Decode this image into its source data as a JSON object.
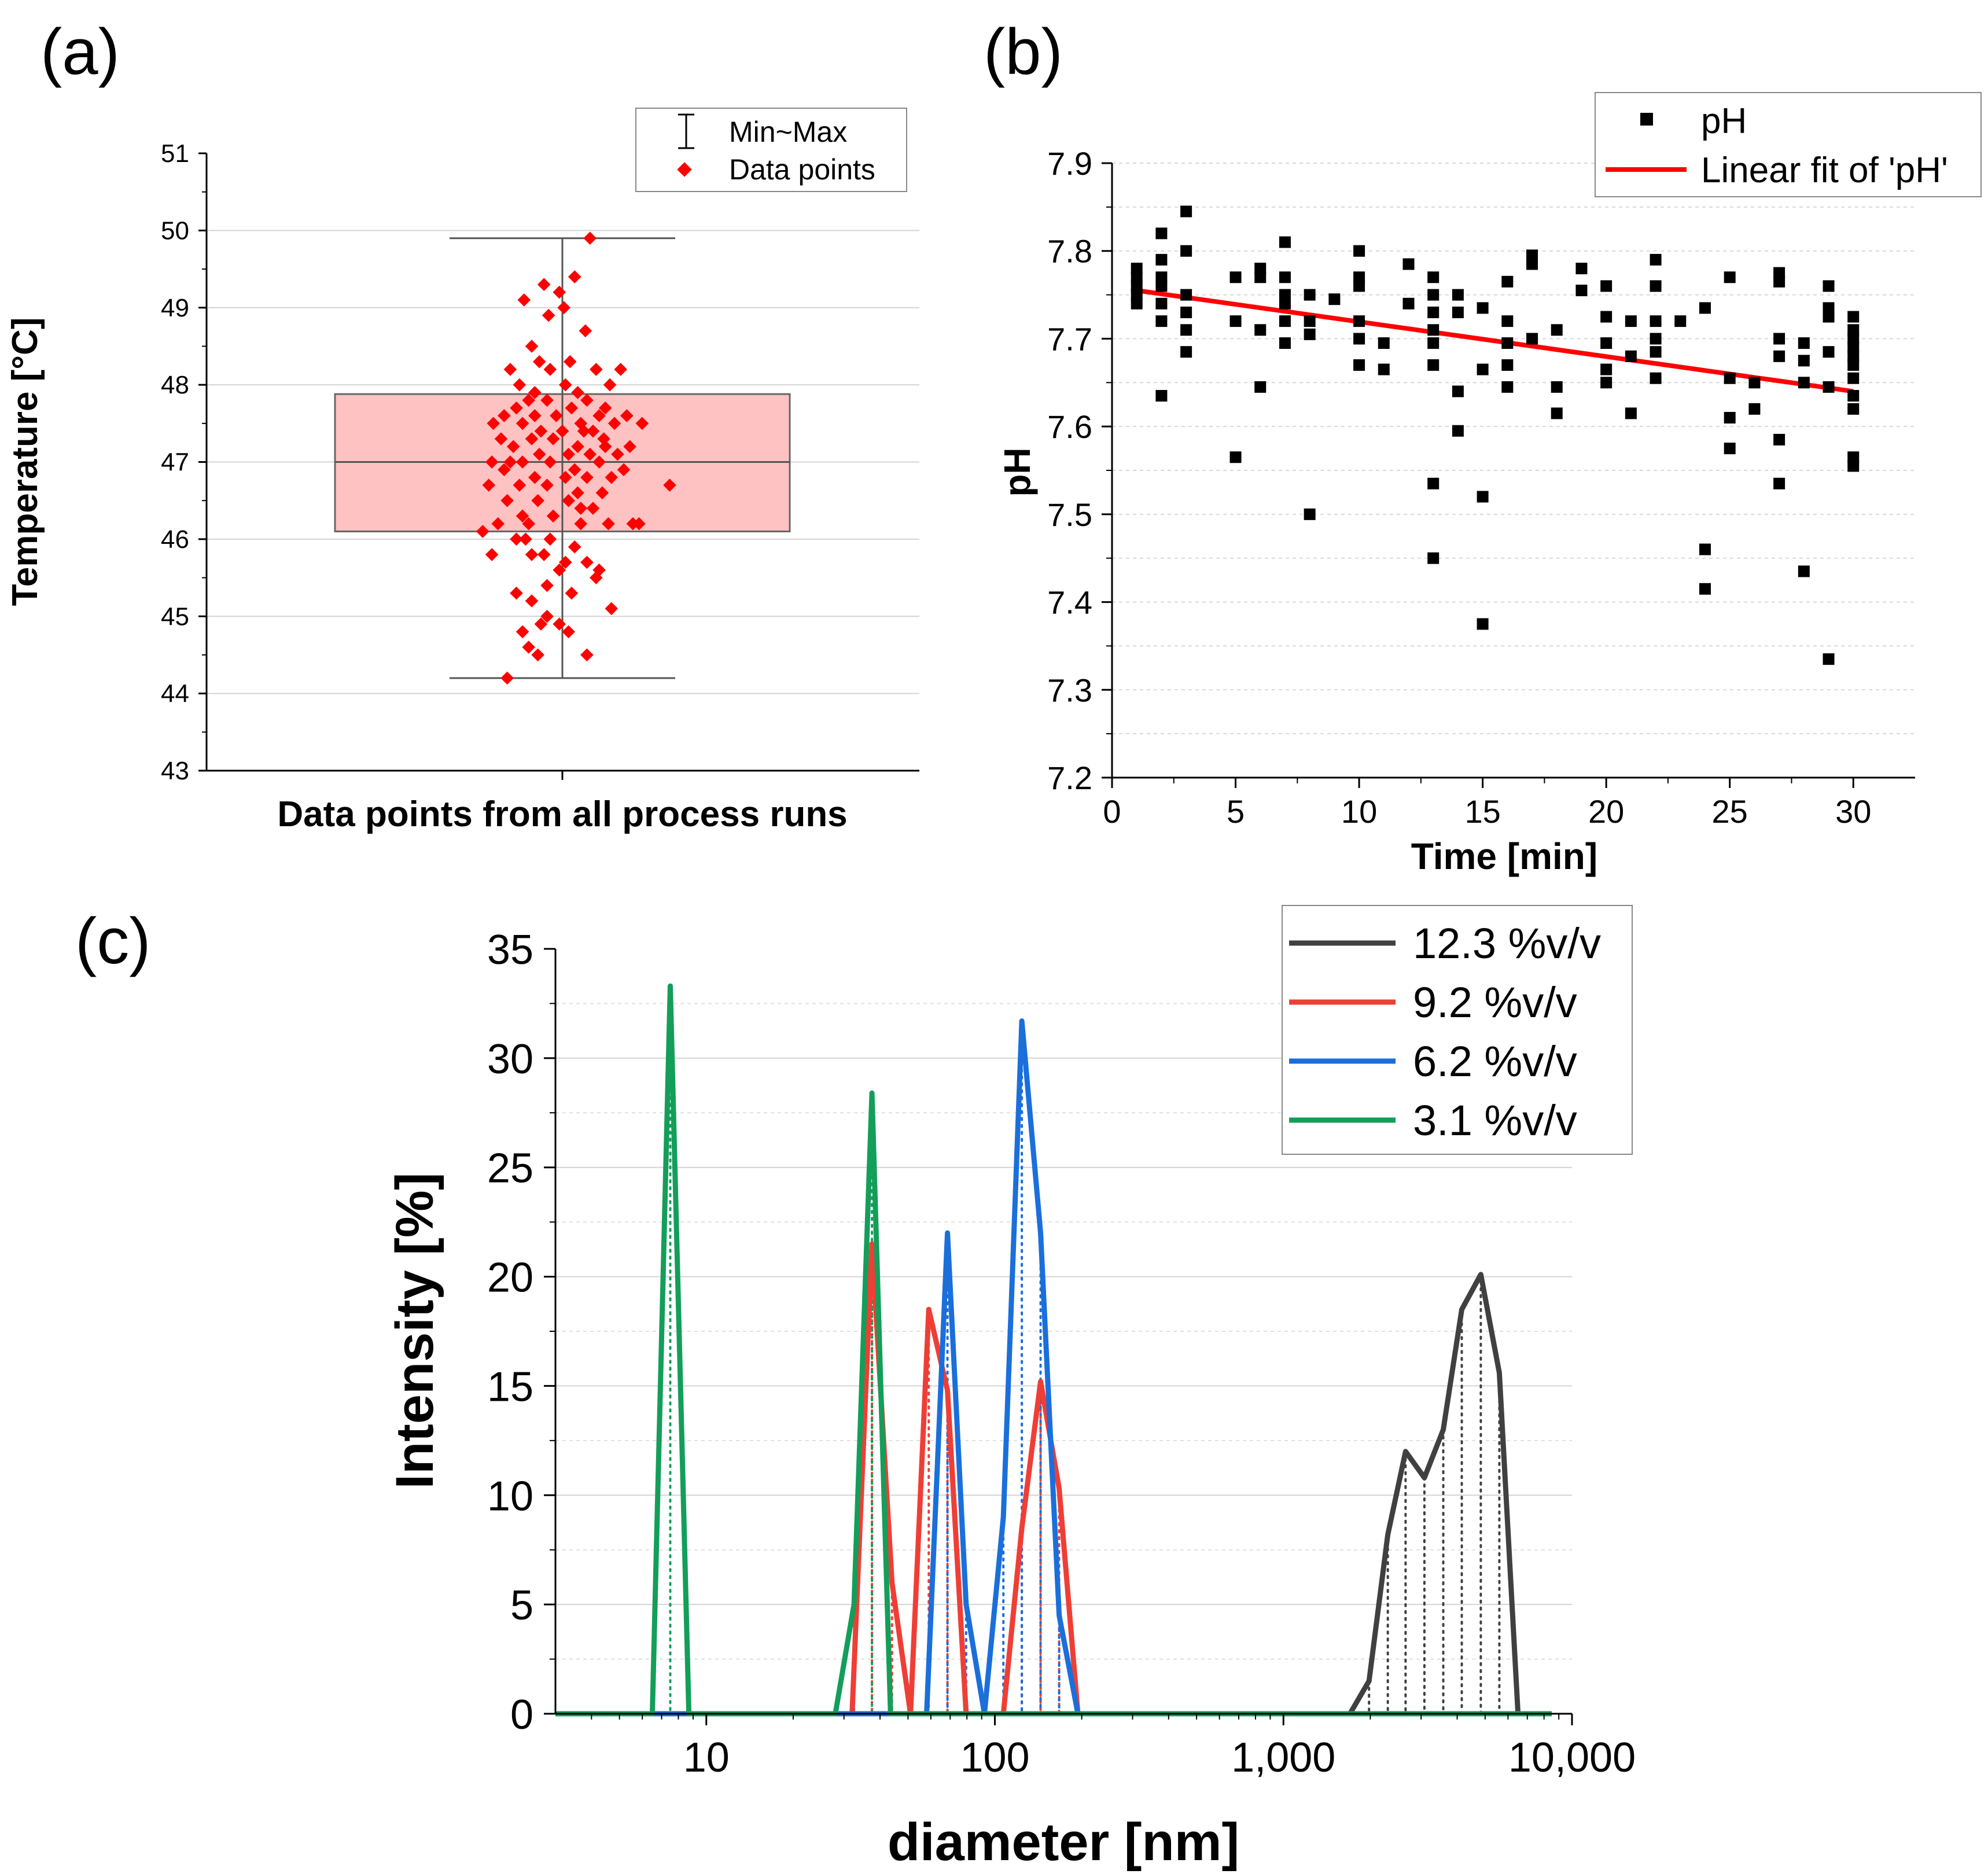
{
  "chart_data": [
    {
      "panel": "(a)",
      "type": "box",
      "xlabel": "Data points from all process runs",
      "ylabel": "Temperature [°C]",
      "ylim": [
        43,
        51
      ],
      "yticks": [
        43,
        44,
        45,
        46,
        47,
        48,
        49,
        50,
        51
      ],
      "grid": true,
      "legend": {
        "position": "top-right",
        "entries": [
          "Min~Max",
          "Data points"
        ]
      },
      "box": {
        "q1": 46.1,
        "median": 47.0,
        "q3": 47.88,
        "min": 44.2,
        "max": 49.9,
        "color": "#ffc2c2"
      },
      "points": [
        [
          -0.36,
          44.2
        ],
        [
          0.18,
          49.9
        ],
        [
          -0.12,
          49.3
        ],
        [
          0.08,
          49.4
        ],
        [
          -0.25,
          49.1
        ],
        [
          -0.02,
          49.2
        ],
        [
          -0.09,
          48.9
        ],
        [
          0.01,
          49.0
        ],
        [
          -0.2,
          48.5
        ],
        [
          0.15,
          48.7
        ],
        [
          -0.34,
          48.2
        ],
        [
          -0.15,
          48.3
        ],
        [
          -0.08,
          48.2
        ],
        [
          0.05,
          48.3
        ],
        [
          0.22,
          48.2
        ],
        [
          0.38,
          48.2
        ],
        [
          -0.28,
          48.0
        ],
        [
          0.02,
          48.0
        ],
        [
          0.31,
          48.0
        ],
        [
          -0.18,
          47.9
        ],
        [
          0.1,
          47.9
        ],
        [
          -0.3,
          47.7
        ],
        [
          -0.22,
          47.8
        ],
        [
          -0.1,
          47.8
        ],
        [
          0.06,
          47.7
        ],
        [
          0.16,
          47.8
        ],
        [
          0.28,
          47.7
        ],
        [
          -0.38,
          47.6
        ],
        [
          -0.18,
          47.6
        ],
        [
          -0.04,
          47.6
        ],
        [
          0.12,
          47.5
        ],
        [
          0.24,
          47.6
        ],
        [
          0.42,
          47.6
        ],
        [
          -0.45,
          47.5
        ],
        [
          -0.26,
          47.5
        ],
        [
          -0.14,
          47.4
        ],
        [
          0.0,
          47.4
        ],
        [
          0.2,
          47.4
        ],
        [
          0.34,
          47.5
        ],
        [
          0.52,
          47.5
        ],
        [
          -0.4,
          47.3
        ],
        [
          -0.2,
          47.3
        ],
        [
          -0.06,
          47.3
        ],
        [
          0.1,
          47.2
        ],
        [
          0.27,
          47.3
        ],
        [
          0.44,
          47.2
        ],
        [
          -0.32,
          47.2
        ],
        [
          -0.15,
          47.1
        ],
        [
          0.04,
          47.1
        ],
        [
          0.18,
          47.1
        ],
        [
          0.36,
          47.1
        ],
        [
          -0.46,
          47.0
        ],
        [
          -0.26,
          47.0
        ],
        [
          -0.08,
          47.0
        ],
        [
          0.08,
          46.9
        ],
        [
          0.24,
          47.0
        ],
        [
          0.4,
          46.9
        ],
        [
          -0.38,
          46.9
        ],
        [
          -0.18,
          46.8
        ],
        [
          0.02,
          46.8
        ],
        [
          0.16,
          46.8
        ],
        [
          0.32,
          46.8
        ],
        [
          -0.48,
          46.7
        ],
        [
          -0.28,
          46.7
        ],
        [
          -0.1,
          46.7
        ],
        [
          0.1,
          46.6
        ],
        [
          0.26,
          46.6
        ],
        [
          0.7,
          46.7
        ],
        [
          -0.36,
          46.5
        ],
        [
          -0.16,
          46.5
        ],
        [
          0.04,
          46.5
        ],
        [
          0.2,
          46.4
        ],
        [
          -0.26,
          46.3
        ],
        [
          -0.06,
          46.3
        ],
        [
          0.12,
          46.2
        ],
        [
          -0.52,
          46.1
        ],
        [
          -0.42,
          46.2
        ],
        [
          -0.22,
          46.2
        ],
        [
          0.3,
          46.2
        ],
        [
          0.46,
          46.2
        ],
        [
          0.5,
          46.2
        ],
        [
          -0.3,
          46.0
        ],
        [
          -0.08,
          46.0
        ],
        [
          0.08,
          45.9
        ],
        [
          -0.46,
          45.8
        ],
        [
          -0.2,
          45.8
        ],
        [
          0.02,
          45.7
        ],
        [
          -0.12,
          45.8
        ],
        [
          0.16,
          45.7
        ],
        [
          -0.02,
          45.6
        ],
        [
          0.24,
          45.6
        ],
        [
          0.22,
          45.5
        ],
        [
          -0.3,
          45.3
        ],
        [
          -0.1,
          45.4
        ],
        [
          0.06,
          45.3
        ],
        [
          -0.2,
          45.2
        ],
        [
          0.32,
          45.1
        ],
        [
          -0.1,
          45.0
        ],
        [
          -0.02,
          44.9
        ],
        [
          -0.26,
          44.8
        ],
        [
          0.04,
          44.8
        ],
        [
          -0.22,
          44.6
        ],
        [
          -0.16,
          44.5
        ],
        [
          0.16,
          44.5
        ],
        [
          -0.14,
          44.9
        ],
        [
          0.12,
          46.4
        ],
        [
          -0.34,
          47.0
        ],
        [
          0.14,
          47.4
        ],
        [
          -0.24,
          46.0
        ],
        [
          0.28,
          47.2
        ]
      ]
    },
    {
      "panel": "(b)",
      "type": "scatter",
      "xlabel": "Time [min]",
      "ylabel": "pH",
      "xlim": [
        0,
        32.5
      ],
      "ylim": [
        7.2,
        7.9
      ],
      "xticks": [
        0,
        5,
        10,
        15,
        20,
        25,
        30
      ],
      "yticks": [
        7.2,
        7.3,
        7.4,
        7.5,
        7.6,
        7.7,
        7.8,
        7.9
      ],
      "legend": {
        "position": "top-right",
        "entries": [
          "pH",
          "Linear fit of 'pH'"
        ]
      },
      "series": [
        {
          "name": "pH",
          "points": [
            [
              1,
              7.78
            ],
            [
              1,
              7.77
            ],
            [
              1,
              7.76
            ],
            [
              1,
              7.75
            ],
            [
              1,
              7.74
            ],
            [
              2,
              7.82
            ],
            [
              2,
              7.79
            ],
            [
              2,
              7.77
            ],
            [
              2,
              7.76
            ],
            [
              2,
              7.74
            ],
            [
              2,
              7.72
            ],
            [
              2,
              7.635
            ],
            [
              3,
              7.845
            ],
            [
              3,
              7.8
            ],
            [
              3,
              7.75
            ],
            [
              3,
              7.73
            ],
            [
              3,
              7.71
            ],
            [
              3,
              7.685
            ],
            [
              5,
              7.77
            ],
            [
              5,
              7.72
            ],
            [
              5,
              7.565
            ],
            [
              6,
              7.78
            ],
            [
              6,
              7.77
            ],
            [
              6,
              7.71
            ],
            [
              6,
              7.645
            ],
            [
              7,
              7.81
            ],
            [
              7,
              7.77
            ],
            [
              7,
              7.75
            ],
            [
              7,
              7.74
            ],
            [
              7,
              7.72
            ],
            [
              7,
              7.695
            ],
            [
              8,
              7.75
            ],
            [
              8,
              7.72
            ],
            [
              8,
              7.705
            ],
            [
              8,
              7.5
            ],
            [
              9,
              7.745
            ],
            [
              10,
              7.8
            ],
            [
              10,
              7.77
            ],
            [
              10,
              7.76
            ],
            [
              10,
              7.72
            ],
            [
              10,
              7.7
            ],
            [
              10,
              7.67
            ],
            [
              11,
              7.695
            ],
            [
              11,
              7.665
            ],
            [
              12,
              7.785
            ],
            [
              12,
              7.74
            ],
            [
              13,
              7.77
            ],
            [
              13,
              7.75
            ],
            [
              13,
              7.73
            ],
            [
              13,
              7.71
            ],
            [
              13,
              7.695
            ],
            [
              13,
              7.67
            ],
            [
              13,
              7.535
            ],
            [
              13,
              7.45
            ],
            [
              14,
              7.75
            ],
            [
              14,
              7.73
            ],
            [
              14,
              7.64
            ],
            [
              14,
              7.595
            ],
            [
              15,
              7.735
            ],
            [
              15,
              7.665
            ],
            [
              15,
              7.52
            ],
            [
              15,
              7.375
            ],
            [
              16,
              7.765
            ],
            [
              16,
              7.72
            ],
            [
              16,
              7.695
            ],
            [
              16,
              7.67
            ],
            [
              16,
              7.645
            ],
            [
              17,
              7.795
            ],
            [
              17,
              7.785
            ],
            [
              17,
              7.7
            ],
            [
              18,
              7.71
            ],
            [
              18,
              7.645
            ],
            [
              18,
              7.615
            ],
            [
              19,
              7.78
            ],
            [
              19,
              7.755
            ],
            [
              20,
              7.76
            ],
            [
              20,
              7.725
            ],
            [
              20,
              7.695
            ],
            [
              20,
              7.665
            ],
            [
              20,
              7.65
            ],
            [
              21,
              7.72
            ],
            [
              21,
              7.68
            ],
            [
              21,
              7.615
            ],
            [
              22,
              7.79
            ],
            [
              22,
              7.76
            ],
            [
              22,
              7.72
            ],
            [
              22,
              7.7
            ],
            [
              22,
              7.685
            ],
            [
              22,
              7.655
            ],
            [
              23,
              7.72
            ],
            [
              24,
              7.735
            ],
            [
              24,
              7.46
            ],
            [
              24,
              7.415
            ],
            [
              25,
              7.77
            ],
            [
              25,
              7.655
            ],
            [
              25,
              7.61
            ],
            [
              25,
              7.575
            ],
            [
              26,
              7.65
            ],
            [
              26,
              7.62
            ],
            [
              27,
              7.775
            ],
            [
              27,
              7.765
            ],
            [
              27,
              7.7
            ],
            [
              27,
              7.68
            ],
            [
              27,
              7.585
            ],
            [
              27,
              7.535
            ],
            [
              28,
              7.695
            ],
            [
              28,
              7.675
            ],
            [
              28,
              7.65
            ],
            [
              28,
              7.435
            ],
            [
              29,
              7.76
            ],
            [
              29,
              7.735
            ],
            [
              29,
              7.725
            ],
            [
              29,
              7.685
            ],
            [
              29,
              7.645
            ],
            [
              29,
              7.335
            ],
            [
              30,
              7.725
            ],
            [
              30,
              7.71
            ],
            [
              30,
              7.7
            ],
            [
              30,
              7.69
            ],
            [
              30,
              7.68
            ],
            [
              30,
              7.67
            ],
            [
              30,
              7.655
            ],
            [
              30,
              7.635
            ],
            [
              30,
              7.62
            ],
            [
              30,
              7.565
            ],
            [
              30,
              7.555
            ]
          ],
          "color": "#000000"
        },
        {
          "name": "Linear fit of 'pH'",
          "type": "line",
          "x": [
            1,
            30
          ],
          "y": [
            7.755,
            7.64
          ],
          "color": "#ff0000"
        }
      ]
    },
    {
      "panel": "(c)",
      "type": "line",
      "xscale": "log",
      "xlabel": "diameter [nm]",
      "ylabel": "Intensity [%]",
      "xlim": [
        3,
        10000
      ],
      "ylim": [
        0,
        35
      ],
      "xticks": [
        10,
        100,
        1000,
        10000
      ],
      "xtick_labels": [
        "10",
        "100",
        "1,000",
        "10,000"
      ],
      "yticks": [
        0,
        5,
        10,
        15,
        20,
        25,
        30,
        35
      ],
      "legend": {
        "position": "top-right",
        "entries": [
          "12.3 %v/v",
          "9.2 %v/v",
          "6.2 %v/v",
          "3.1 %v/v"
        ]
      },
      "series": [
        {
          "name": "12.3 %v/v",
          "color": "#404040",
          "x": [
            3,
            1700,
            1980,
            2300,
            2650,
            3080,
            3580,
            4150,
            4830,
            5600,
            6500,
            8500
          ],
          "y": [
            0,
            0,
            1.5,
            8.2,
            12.0,
            10.8,
            13.0,
            18.5,
            20.1,
            15.6,
            0,
            0
          ]
        },
        {
          "name": "9.2 %v/v",
          "color": "#ef3e36",
          "x": [
            3,
            32,
            37.5,
            44,
            51,
            59,
            68.5,
            79.5,
            92,
            107,
            124,
            144,
            167,
            194,
            8500
          ],
          "y": [
            0,
            0,
            21.5,
            6.0,
            0,
            18.5,
            14.8,
            0,
            0,
            0,
            8.5,
            15.2,
            10.3,
            0,
            0
          ]
        },
        {
          "name": "6.2 %v/v",
          "color": "#1a6fdb",
          "x": [
            3,
            58,
            68.5,
            79.5,
            92,
            107,
            124,
            144,
            167,
            194,
            8500
          ],
          "y": [
            0,
            0,
            22.0,
            5.0,
            0,
            9.0,
            31.7,
            22.0,
            4.5,
            0,
            0
          ]
        },
        {
          "name": "3.1 %v/v",
          "color": "#139e5a",
          "x": [
            3,
            6.5,
            7.5,
            8.7,
            28,
            32.5,
            37.5,
            43.5,
            8500
          ],
          "y": [
            0,
            0,
            33.3,
            0,
            0,
            5.0,
            28.4,
            0,
            0
          ]
        }
      ]
    }
  ]
}
